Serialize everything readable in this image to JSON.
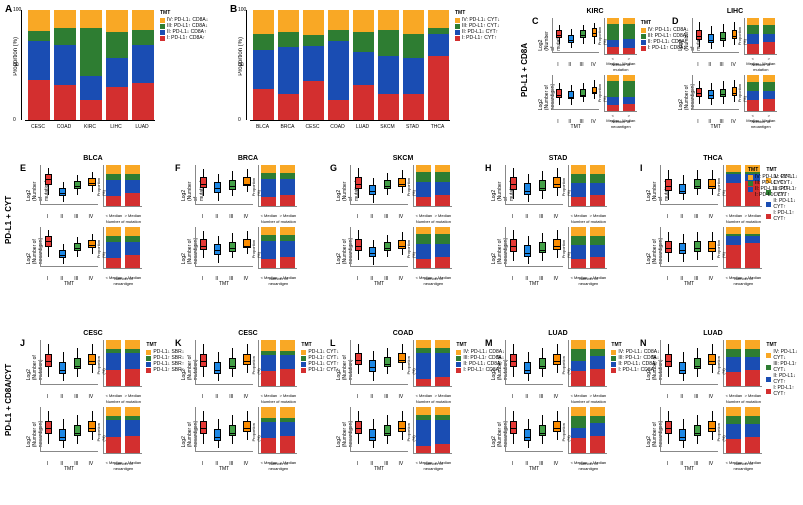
{
  "colors": {
    "tmt4": "#f9a825",
    "tmt3": "#2e7d32",
    "tmt2": "#1a4db3",
    "tmt1": "#d32f2f",
    "box1": "#e53935",
    "box2": "#1e88e5",
    "box3": "#43a047",
    "box4": "#fb8c00"
  },
  "legends": {
    "cd8a": {
      "title": "TMT",
      "items": [
        "IV: PD-L1↓ CD8A↓",
        "III: PD-L1↑ CD8A↓",
        "II: PD-L1↓ CD8A↑",
        "I: PD-L1↑ CD8A↑"
      ]
    },
    "cyt": {
      "title": "TMT",
      "items": [
        "IV: PD-L1↓ CYT↓",
        "III: PD-L1↑ CYT↓",
        "II: PD-L1↓ CYT↑",
        "I: PD-L1↑ CYT↑"
      ]
    },
    "cesc_cd8a": {
      "title": "TMT",
      "items": [
        "PD-L1↓ SBR↓",
        "PD-L1↑ SBR↓",
        "PD-L1↓ SBR↑",
        "PD-L1↑ SBR↑"
      ]
    },
    "cesc_cyt": {
      "title": "TMT",
      "items": [
        "PD-L1↓ CYT↓",
        "PD-L1↑ CYT↓",
        "PD-L1↓ CYT↑",
        "PD-L1↑ CYT↑"
      ]
    }
  },
  "axis": {
    "prop_label": "Proportion (%)",
    "mut_label": "Log2 (Number of mutation)",
    "neo_label": "Log2 (Number of neoantigen)",
    "mini_cats": [
      "< Median",
      "> Median"
    ],
    "mini_mut": "Number of mutation",
    "mini_neo": "Number of neoantigen",
    "tmt_cats": [
      "I",
      "II",
      "III",
      "IV"
    ],
    "tmt_label": "TMT"
  },
  "rowLabels": {
    "r1": "PD-L1 + CD8A",
    "r2": "PD-L1 + CYT",
    "r3": "PD-L1 + CD8A/CYT"
  },
  "panelA": {
    "label": "A",
    "cats": [
      "CESC",
      "COAD",
      "KIRC",
      "LIHC",
      "LUAD"
    ],
    "stacks": [
      [
        36,
        36,
        9,
        19
      ],
      [
        32,
        36,
        16,
        16
      ],
      [
        18,
        22,
        44,
        16
      ],
      [
        30,
        26,
        24,
        20
      ],
      [
        34,
        34,
        14,
        18
      ]
    ]
  },
  "panelB": {
    "label": "B",
    "cats": [
      "BLCA",
      "BRCA",
      "CESC",
      "COAD",
      "LUAD",
      "SKCM",
      "STAD",
      "THCA"
    ],
    "stacks": [
      [
        28,
        36,
        14,
        22
      ],
      [
        24,
        42,
        14,
        20
      ],
      [
        35,
        32,
        10,
        23
      ],
      [
        18,
        54,
        10,
        18
      ],
      [
        32,
        30,
        18,
        20
      ],
      [
        24,
        34,
        24,
        18
      ],
      [
        24,
        32,
        22,
        22
      ],
      [
        58,
        20,
        6,
        16
      ]
    ]
  },
  "small": {
    "C": {
      "title": "KIRC",
      "box_mut": [
        [
          5,
          7,
          6
        ],
        [
          4.5,
          6.5,
          5.5
        ],
        [
          5,
          7,
          6
        ],
        [
          5,
          7.2,
          6.2
        ]
      ],
      "box_neo": [
        [
          1,
          3,
          2
        ],
        [
          1,
          2.8,
          1.8
        ],
        [
          1.2,
          3,
          2
        ],
        [
          1.5,
          3.2,
          2.2
        ]
      ],
      "stack_mut": [
        [
          20,
          20,
          44,
          16
        ],
        [
          18,
          24,
          42,
          16
        ]
      ],
      "stack_neo": [
        [
          18,
          22,
          44,
          16
        ],
        [
          20,
          20,
          44,
          16
        ]
      ]
    },
    "D": {
      "title": "LIHC",
      "box_mut": [
        [
          5,
          8,
          6.5
        ],
        [
          4.8,
          7.5,
          6
        ],
        [
          5,
          7.8,
          6.2
        ],
        [
          5.2,
          8,
          6.5
        ]
      ],
      "box_neo": [
        [
          1,
          3.5,
          2.2
        ],
        [
          0.8,
          3.2,
          2
        ],
        [
          1,
          3.4,
          2.1
        ],
        [
          1.2,
          3.6,
          2.3
        ]
      ],
      "stack_mut": [
        [
          28,
          28,
          24,
          20
        ],
        [
          32,
          24,
          24,
          20
        ]
      ],
      "stack_neo": [
        [
          30,
          26,
          24,
          20
        ],
        [
          32,
          24,
          24,
          20
        ]
      ]
    },
    "E": {
      "title": "BLCA",
      "box_mut": [
        [
          6,
          10,
          8.5
        ],
        [
          5,
          8,
          6.5
        ],
        [
          6,
          9,
          7.5
        ],
        [
          6.5,
          9.5,
          8
        ]
      ],
      "box_neo": [
        [
          2,
          6,
          4.5
        ],
        [
          1,
          4,
          2.5
        ],
        [
          2,
          5,
          3.5
        ],
        [
          2.5,
          5.5,
          4
        ]
      ],
      "stack_mut": [
        [
          24,
          40,
          14,
          22
        ],
        [
          32,
          32,
          14,
          22
        ]
      ],
      "stack_neo": [
        [
          24,
          40,
          14,
          22
        ],
        [
          32,
          32,
          14,
          22
        ]
      ]
    },
    "F": {
      "title": "BRCA",
      "box_mut": [
        [
          4,
          7,
          5.5
        ],
        [
          3.5,
          6.5,
          5
        ],
        [
          4,
          6.8,
          5.2
        ],
        [
          4.5,
          7,
          5.5
        ]
      ],
      "box_neo": [
        [
          0,
          3,
          1.5
        ],
        [
          -0.5,
          2.5,
          1
        ],
        [
          0,
          2.8,
          1.2
        ],
        [
          0.5,
          3,
          1.5
        ]
      ],
      "stack_mut": [
        [
          22,
          44,
          14,
          20
        ],
        [
          26,
          40,
          14,
          20
        ]
      ],
      "stack_neo": [
        [
          22,
          44,
          14,
          20
        ],
        [
          26,
          40,
          14,
          20
        ]
      ]
    },
    "G": {
      "title": "SKCM",
      "box_mut": [
        [
          6,
          12,
          9
        ],
        [
          5,
          10,
          7.5
        ],
        [
          6.5,
          11,
          8.5
        ],
        [
          7,
          11.5,
          9
        ]
      ],
      "box_neo": [
        [
          2,
          8,
          5
        ],
        [
          1,
          6,
          3.5
        ],
        [
          2.5,
          7,
          4.5
        ],
        [
          3,
          7.5,
          5
        ]
      ],
      "stack_mut": [
        [
          22,
          36,
          24,
          18
        ],
        [
          26,
          32,
          24,
          18
        ]
      ],
      "stack_neo": [
        [
          22,
          36,
          24,
          18
        ],
        [
          26,
          32,
          24,
          18
        ]
      ]
    },
    "H": {
      "title": "STAD",
      "box_mut": [
        [
          5,
          10,
          7.5
        ],
        [
          4.5,
          9,
          6.5
        ],
        [
          5,
          9.5,
          7
        ],
        [
          5.5,
          10,
          7.5
        ]
      ],
      "box_neo": [
        [
          1,
          6,
          3.5
        ],
        [
          0.5,
          5,
          2.5
        ],
        [
          1,
          5.5,
          3
        ],
        [
          1.5,
          6,
          3.5
        ]
      ],
      "stack_mut": [
        [
          22,
          34,
          22,
          22
        ],
        [
          26,
          30,
          22,
          22
        ]
      ],
      "stack_neo": [
        [
          22,
          34,
          22,
          22
        ],
        [
          26,
          30,
          22,
          22
        ]
      ]
    },
    "I": {
      "title": "THCA",
      "box_mut": [
        [
          2,
          5,
          3.5
        ],
        [
          2,
          4.5,
          3
        ],
        [
          2.5,
          5,
          3.5
        ],
        [
          2.5,
          5,
          3.5
        ]
      ],
      "box_neo": [
        [
          -1,
          2,
          0.5
        ],
        [
          -1,
          1.8,
          0.3
        ],
        [
          -0.8,
          2,
          0.5
        ],
        [
          -0.8,
          2,
          0.5
        ]
      ],
      "stack_mut": [
        [
          56,
          22,
          6,
          16
        ],
        [
          60,
          18,
          6,
          16
        ]
      ],
      "stack_neo": [
        [
          56,
          22,
          6,
          16
        ],
        [
          60,
          18,
          6,
          16
        ]
      ]
    },
    "J": {
      "title": "CESC",
      "box_mut": [
        [
          5,
          9,
          7
        ],
        [
          4.5,
          8,
          6
        ],
        [
          5,
          8.5,
          6.5
        ],
        [
          5.5,
          9,
          7
        ]
      ],
      "box_neo": [
        [
          1,
          5,
          3
        ],
        [
          0.5,
          4,
          2
        ],
        [
          1,
          4.5,
          2.5
        ],
        [
          1.5,
          5,
          3
        ]
      ],
      "stack_mut": [
        [
          34,
          38,
          9,
          19
        ],
        [
          38,
          34,
          9,
          19
        ]
      ],
      "stack_neo": [
        [
          34,
          38,
          9,
          19
        ],
        [
          38,
          34,
          9,
          19
        ]
      ],
      "legend": "cesc_cd8a"
    },
    "K": {
      "title": "CESC",
      "box_mut": [
        [
          5,
          9,
          7
        ],
        [
          4.5,
          8,
          6
        ],
        [
          5,
          8.5,
          6.5
        ],
        [
          5.5,
          9,
          7
        ]
      ],
      "box_neo": [
        [
          1,
          5,
          3
        ],
        [
          0.5,
          4,
          2
        ],
        [
          1,
          4.5,
          2.5
        ],
        [
          1.5,
          5,
          3
        ]
      ],
      "stack_mut": [
        [
          33,
          34,
          10,
          23
        ],
        [
          37,
          30,
          10,
          23
        ]
      ],
      "stack_neo": [
        [
          33,
          34,
          10,
          23
        ],
        [
          37,
          30,
          10,
          23
        ]
      ],
      "legend": "cesc_cyt"
    },
    "L": {
      "title": "COAD",
      "box_mut": [
        [
          6,
          10,
          8
        ],
        [
          5,
          9,
          7
        ],
        [
          6,
          9.5,
          7.5
        ],
        [
          6.5,
          10,
          8
        ]
      ],
      "box_neo": [
        [
          1,
          5,
          3
        ],
        [
          0.5,
          4,
          2
        ],
        [
          1,
          4.5,
          2.5
        ],
        [
          1.5,
          5,
          3
        ]
      ],
      "stack_mut": [
        [
          16,
          56,
          10,
          18
        ],
        [
          20,
          52,
          10,
          18
        ]
      ],
      "stack_neo": [
        [
          16,
          56,
          10,
          18
        ],
        [
          20,
          52,
          10,
          18
        ]
      ],
      "legend": "cd8a"
    },
    "M": {
      "title": "LUAD",
      "box_mut": [
        [
          6,
          10,
          8
        ],
        [
          5.5,
          9,
          7
        ],
        [
          6,
          9.5,
          7.5
        ],
        [
          6.5,
          10,
          8
        ]
      ],
      "box_neo": [
        [
          2,
          6,
          4
        ],
        [
          1.5,
          5,
          3
        ],
        [
          2,
          5.5,
          3.5
        ],
        [
          2.5,
          6,
          4
        ]
      ],
      "stack_mut": [
        [
          32,
          22,
          26,
          20
        ],
        [
          36,
          30,
          14,
          20
        ]
      ],
      "stack_neo": [
        [
          32,
          22,
          26,
          20
        ],
        [
          36,
          30,
          14,
          20
        ]
      ],
      "legend": "cd8a"
    },
    "N": {
      "title": "LUAD",
      "box_mut": [
        [
          6,
          10,
          8
        ],
        [
          5.5,
          9,
          7
        ],
        [
          6,
          9.5,
          7.5
        ],
        [
          6.5,
          10,
          8
        ]
      ],
      "box_neo": [
        [
          2,
          6,
          4
        ],
        [
          1.5,
          5,
          3
        ],
        [
          2,
          5.5,
          3.5
        ],
        [
          2.5,
          6,
          4
        ]
      ],
      "stack_mut": [
        [
          30,
          32,
          18,
          20
        ],
        [
          34,
          28,
          18,
          20
        ]
      ],
      "stack_neo": [
        [
          30,
          32,
          18,
          20
        ],
        [
          34,
          28,
          18,
          20
        ]
      ],
      "legend": "cyt"
    }
  },
  "panelLabels": {
    "C": "C",
    "D": "D",
    "E": "E",
    "F": "F",
    "G": "G",
    "H": "H",
    "I": "I",
    "J": "J",
    "K": "K",
    "L": "L",
    "M": "M",
    "N": "N"
  }
}
